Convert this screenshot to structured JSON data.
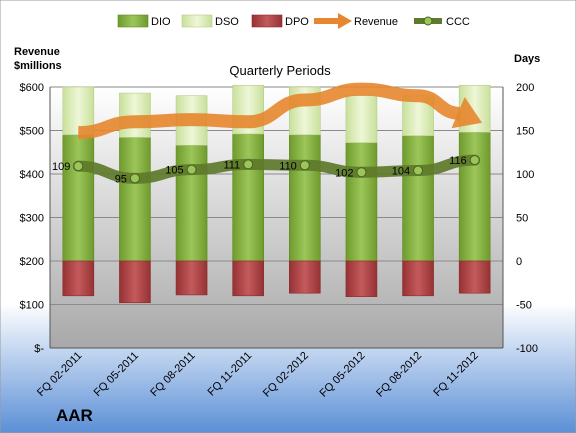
{
  "chart_data": {
    "type": "bar",
    "subtitle": "Quarterly Periods",
    "company": "AAR",
    "y_left_label": [
      "Revenue",
      "$millions"
    ],
    "y_right_label": "Days",
    "y_left_ticks": [
      "$-",
      "$100",
      "$200",
      "$300",
      "$400",
      "$500",
      "$600"
    ],
    "y_right_ticks": [
      "-100",
      "-50",
      "0",
      "50",
      "100",
      "150",
      "200"
    ],
    "ylim_left": [
      0,
      600
    ],
    "ylim_right": [
      -100,
      200
    ],
    "categories": [
      "FQ 02-2011",
      "FQ 05-2011",
      "FQ 08-2011",
      "FQ 11-2011",
      "FQ 02-2012",
      "FQ 05-2012",
      "FQ 08-2012",
      "FQ 11-2012"
    ],
    "series": [
      {
        "name": "DIO",
        "axis": "right",
        "kind": "stacked-bar",
        "values": [
          145,
          142,
          133,
          146,
          145,
          136,
          144,
          148
        ]
      },
      {
        "name": "DSO",
        "axis": "right",
        "kind": "stacked-bar",
        "values": [
          55,
          51,
          57,
          56,
          55,
          54,
          46,
          54
        ]
      },
      {
        "name": "DPO",
        "axis": "right",
        "kind": "stacked-bar",
        "values": [
          -40,
          -48,
          -39,
          -40,
          -37,
          -41,
          -40,
          -37
        ]
      },
      {
        "name": "Revenue",
        "axis": "left",
        "kind": "arrow-line",
        "values": [
          495,
          520,
          525,
          520,
          570,
          595,
          580,
          525
        ]
      },
      {
        "name": "CCC",
        "axis": "right",
        "kind": "line-labels",
        "values": [
          109,
          95,
          105,
          111,
          110,
          102,
          104,
          116
        ]
      }
    ],
    "legend": [
      "DIO",
      "DSO",
      "DPO",
      "Revenue",
      "CCC"
    ],
    "colors": {
      "dio": "#8eb84a",
      "dio_dark": "#5f8a22",
      "dso": "#dbedb5",
      "dpo": "#b8494b",
      "dpo_dark": "#8c2a2c",
      "revenue": "#e6862e",
      "ccc": "#5e7a2b",
      "plot_bg_top": "#ffffff",
      "plot_bg_bottom": "#b3b3b3",
      "page_bg_top": "#ffffff",
      "page_bg_bottom": "#5b8fd6"
    },
    "grid": true,
    "legend_position": "top"
  }
}
